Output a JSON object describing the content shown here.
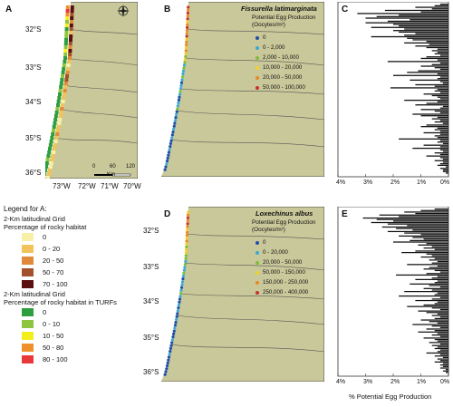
{
  "panels": {
    "a": {
      "label": "A"
    },
    "b": {
      "label": "B"
    },
    "c": {
      "label": "C"
    },
    "d": {
      "label": "D"
    },
    "e": {
      "label": "E"
    }
  },
  "map_a": {
    "lat_labels": [
      "32°S",
      "33°S",
      "34°S",
      "35°S",
      "36°S"
    ],
    "lon_labels": [
      "73°W",
      "72°W",
      "71°W",
      "70°W"
    ],
    "scale_labels": [
      "0",
      "60",
      "120"
    ],
    "scale_unit": "Km",
    "compass_label": "N"
  },
  "map_b": {
    "species": "Fissurella latimarginata",
    "subtitle": "Potential Egg Production (Oocytes/m²)",
    "classes": [
      {
        "label": "0",
        "color": "#1f4fa8"
      },
      {
        "label": "0 - 2,000",
        "color": "#3aa9d6"
      },
      {
        "label": "2,000 - 10,000",
        "color": "#7dbf3b"
      },
      {
        "label": "10,000 - 20,000",
        "color": "#f2d028"
      },
      {
        "label": "20,000 - 50,000",
        "color": "#e88a24"
      },
      {
        "label": "50,000 - 100,000",
        "color": "#c9302c"
      }
    ]
  },
  "map_d": {
    "species": "Loxechinus albus",
    "subtitle": "Potential Egg Production (Oocytes/m²)",
    "lat_labels": [
      "32°S",
      "33°S",
      "34°S",
      "35°S",
      "36°S"
    ],
    "classes": [
      {
        "label": "0",
        "color": "#1f4fa8"
      },
      {
        "label": "0 - 20,000",
        "color": "#3aa9d6"
      },
      {
        "label": "20,000 - 50,000",
        "color": "#7dbf3b"
      },
      {
        "label": "50,000 - 150,000",
        "color": "#f2d028"
      },
      {
        "label": "150,000 - 250,000",
        "color": "#e88a24"
      },
      {
        "label": "250,000 - 400,000",
        "color": "#c9302c"
      }
    ]
  },
  "legend_a": {
    "title": "Legend for A:",
    "group1_title": "2-Km latitudinal Grid",
    "group1_sub": "Percentage of rocky habitat",
    "group1": [
      {
        "label": "0",
        "color": "#f8efa8"
      },
      {
        "label": "0 - 20",
        "color": "#f2c35a"
      },
      {
        "label": "20 - 50",
        "color": "#e08a3a"
      },
      {
        "label": "50 - 70",
        "color": "#a4502a"
      },
      {
        "label": "70 - 100",
        "color": "#5a1010"
      }
    ],
    "group2_title": "2-Km latitudinal Grid",
    "group2_sub": "Percentage of rocky habitat in TURFs",
    "group2": [
      {
        "label": "0",
        "color": "#2e9e3e"
      },
      {
        "label": "0 - 10",
        "color": "#8cc63f"
      },
      {
        "label": "10 - 50",
        "color": "#f4ee1c"
      },
      {
        "label": "50 - 80",
        "color": "#f0902c"
      },
      {
        "label": "80 - 100",
        "color": "#e8383a"
      }
    ]
  },
  "chart_data": [
    {
      "type": "bar",
      "orientation": "horizontal",
      "title": "",
      "xlabel": "",
      "ylabel": "",
      "x_ticks": [
        "4%",
        "3%",
        "2%",
        "1%",
        "0%"
      ],
      "xlim": [
        0,
        4
      ],
      "values": [
        0.3,
        0.5,
        1.2,
        0.6,
        2.3,
        1.0,
        3.3,
        1.8,
        2.6,
        3.0,
        1.4,
        2.2,
        3.0,
        2.0,
        1.8,
        2.8,
        1.6,
        2.0,
        1.8,
        1.2,
        1.6,
        2.8,
        1.5,
        1.3,
        0.8,
        1.6,
        0.7,
        1.2,
        0.8,
        0.4,
        0.6,
        0.4,
        0.5,
        0.3,
        0.8,
        1.0,
        0.4,
        2.2,
        0.3,
        0.6,
        1.0,
        0.5,
        0.3,
        1.1,
        1.5,
        0.4,
        2.0,
        0.3,
        0.4,
        1.4,
        0.3,
        0.2,
        1.2,
        0.5,
        2.1,
        0.4,
        0.5,
        0.3,
        0.9,
        0.6,
        0.4,
        0.3,
        1.6,
        0.4,
        0.8,
        1.2,
        0.2,
        0.3,
        1.0,
        0.5,
        0.3,
        1.3,
        1.0,
        0.4,
        0.6,
        0.3,
        0.5,
        0.2,
        0.8,
        1.0,
        0.4,
        0.5,
        0.3,
        0.9,
        0.3,
        0.5,
        0.4,
        1.8,
        0.3,
        0.4,
        0.2,
        0.9,
        0.3,
        1.3,
        0.3,
        0.2,
        0.5,
        0.3,
        0.8,
        0.3,
        0.2,
        0.5,
        0.2,
        0.3,
        0.4,
        0.1,
        0.3,
        0.2,
        0.2,
        0.1
      ]
    },
    {
      "type": "bar",
      "orientation": "horizontal",
      "title": "",
      "xlabel": "% Potential Egg Production",
      "ylabel": "",
      "x_ticks": [
        "4%",
        "3%",
        "2%",
        "1%",
        "0%"
      ],
      "xlim": [
        0,
        4
      ],
      "values": [
        0.5,
        1.0,
        1.6,
        1.2,
        2.5,
        1.8,
        3.1,
        2.6,
        2.0,
        2.8,
        2.2,
        1.5,
        2.4,
        1.9,
        1.3,
        2.2,
        1.6,
        1.0,
        1.8,
        1.3,
        0.9,
        1.4,
        2.0,
        0.8,
        1.1,
        0.6,
        0.9,
        0.5,
        1.2,
        1.7,
        0.8,
        0.6,
        1.0,
        0.5,
        0.7,
        0.4,
        0.6,
        1.5,
        0.4,
        0.7,
        0.9,
        0.5,
        0.3,
        0.8,
        1.9,
        0.4,
        0.6,
        1.2,
        0.4,
        0.5,
        1.4,
        0.7,
        0.3,
        0.9,
        0.6,
        1.6,
        0.4,
        0.5,
        1.8,
        0.3,
        0.6,
        1.2,
        0.4,
        0.5,
        0.9,
        1.5,
        0.6,
        0.3,
        1.1,
        0.8,
        0.4,
        0.6,
        0.3,
        0.5,
        1.0,
        0.7,
        0.4,
        1.3,
        0.6,
        0.3,
        0.8,
        0.5,
        1.1,
        0.4,
        0.6,
        0.3,
        0.9,
        0.5,
        0.4,
        0.7,
        0.3,
        0.6,
        0.4,
        0.5,
        0.3,
        0.4,
        0.8,
        0.3,
        0.5,
        0.2,
        0.4,
        0.3,
        0.5,
        0.2,
        0.3,
        0.2,
        0.3,
        0.1,
        0.2,
        0.1
      ]
    }
  ]
}
